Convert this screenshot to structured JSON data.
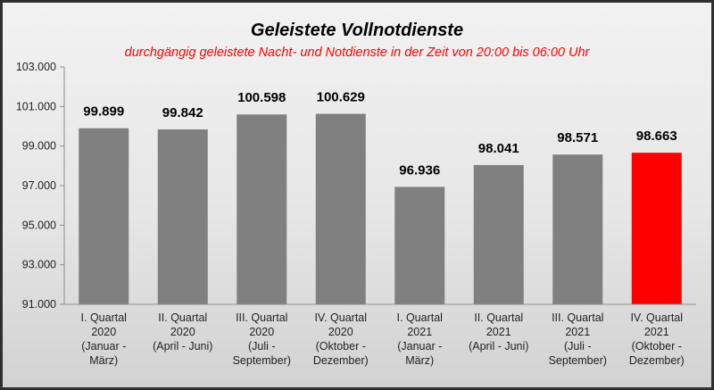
{
  "chart_data": {
    "type": "bar",
    "title": "Geleistete  Vollnotdienste",
    "subtitle": "durchgängig geleistete Nacht- und Notdienste in der Zeit von 20:00 bis 06:00 Uhr",
    "categories": [
      [
        "I. Quartal",
        "2020",
        "(Januar -",
        "März)"
      ],
      [
        "II. Quartal",
        "2020",
        "(April - Juni)"
      ],
      [
        "III. Quartal",
        "2020",
        "(Juli -",
        "September)"
      ],
      [
        "IV. Quartal",
        "2020",
        "(Oktober -",
        "Dezember)"
      ],
      [
        "I. Quartal",
        "2021",
        "(Januar -",
        "März)"
      ],
      [
        "II. Quartal",
        "2021",
        "(April - Juni)"
      ],
      [
        "III. Quartal",
        "2021",
        "(Juli -",
        "September)"
      ],
      [
        "IV. Quartal",
        "2021",
        "(Oktober -",
        "Dezember)"
      ]
    ],
    "values": [
      99899,
      99842,
      100598,
      100629,
      96936,
      98041,
      98571,
      98663
    ],
    "value_labels": [
      "99.899",
      "99.842",
      "100.598",
      "100.629",
      "96.936",
      "98.041",
      "98.571",
      "98.663"
    ],
    "ylim": [
      91000,
      103000
    ],
    "yticks": [
      91000,
      93000,
      95000,
      97000,
      99000,
      101000,
      103000
    ],
    "ytick_labels": [
      "91.000",
      "93.000",
      "95.000",
      "97.000",
      "99.000",
      "101.000",
      "103.000"
    ],
    "grid": false,
    "legend": "none",
    "xlabel": "",
    "ylabel": "",
    "colors": {
      "bar": "#808080",
      "highlight_bar": "#ff0000",
      "subtitle": "#ff0000"
    },
    "highlight_index": 7
  }
}
